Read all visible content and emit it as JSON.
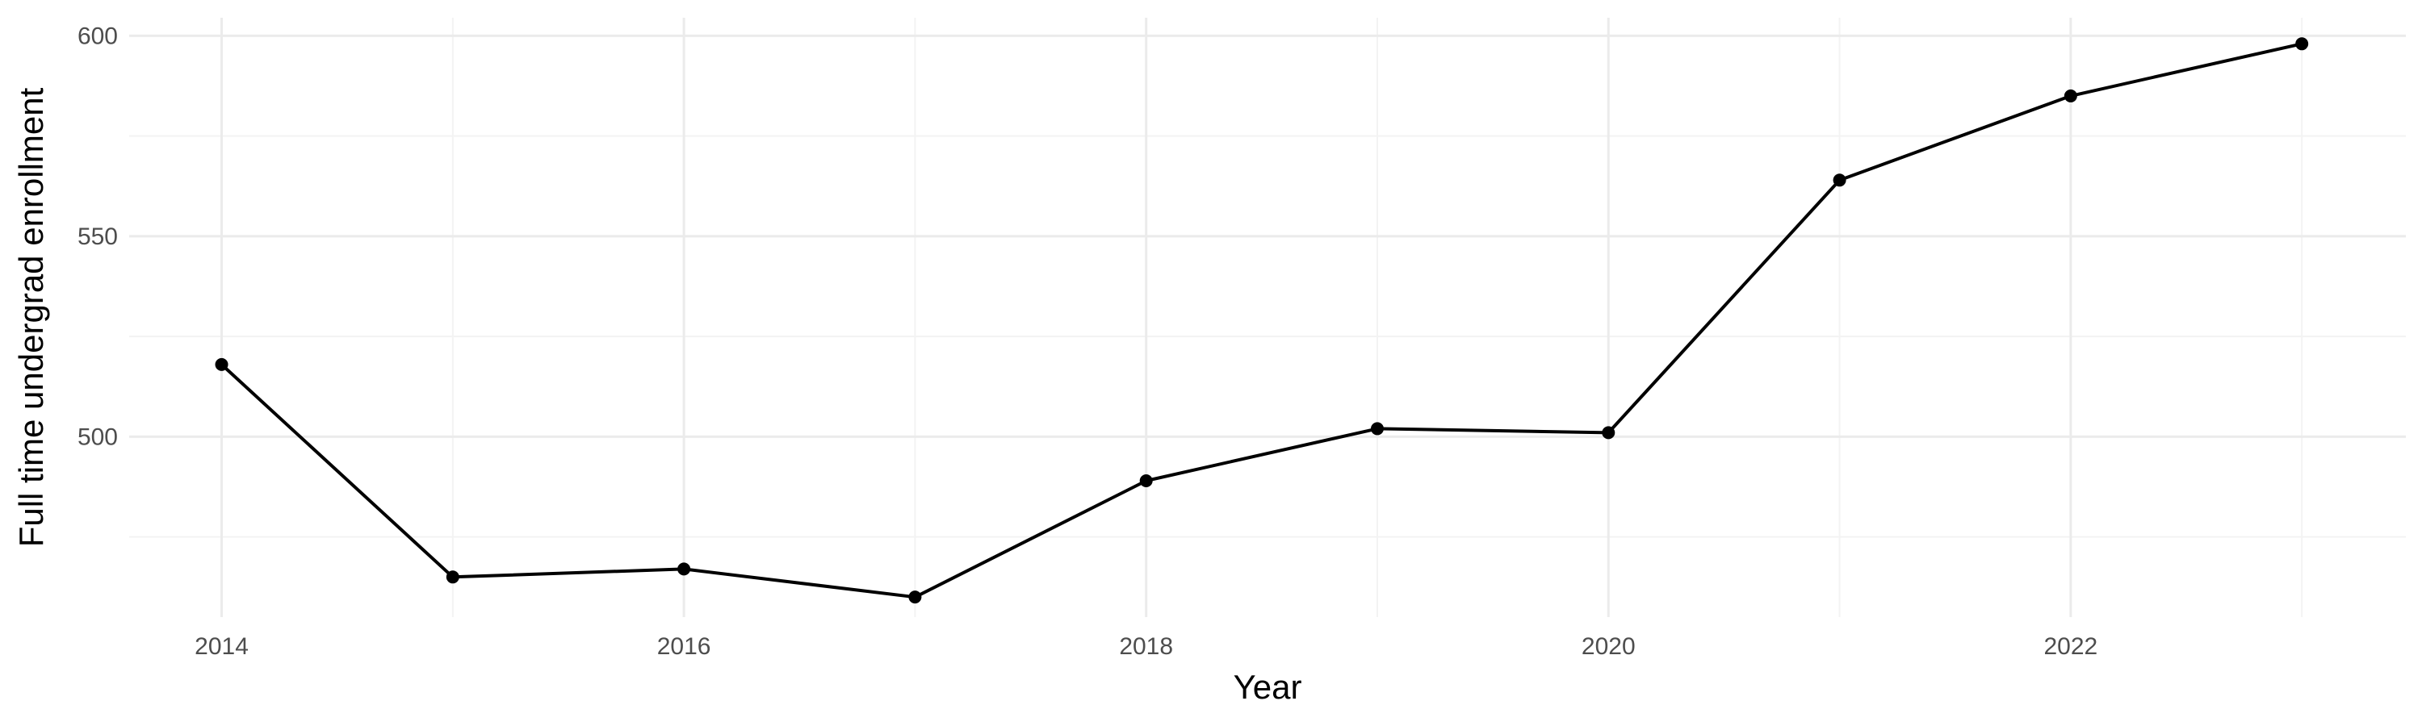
{
  "chart_data": {
    "type": "line",
    "title": "",
    "xlabel": "Year",
    "ylabel": "Full time undergrad enrollment",
    "x": [
      2014,
      2015,
      2016,
      2017,
      2018,
      2019,
      2020,
      2021,
      2022,
      2023
    ],
    "series": [
      {
        "values": [
          518,
          465,
          467,
          460,
          489,
          502,
          501,
          564,
          585,
          598
        ]
      }
    ],
    "xlim": [
      2013.6,
      2023.45
    ],
    "ylim": [
      455,
      604.5
    ],
    "x_ticks": [
      2014,
      2016,
      2018,
      2020,
      2022
    ],
    "x_tick_labels": [
      "2014",
      "2016",
      "2018",
      "2020",
      "2022"
    ],
    "x_minor_ticks": [
      2015,
      2017,
      2019,
      2021,
      2023
    ],
    "y_ticks": [
      500,
      550,
      600
    ],
    "y_tick_labels": [
      "500",
      "550",
      "600"
    ],
    "y_minor_ticks": [
      475,
      525,
      575
    ],
    "grid": true,
    "legend": "none",
    "line_color": "#000000",
    "point_color": "#000000",
    "grid_color": "#ebebeb"
  }
}
